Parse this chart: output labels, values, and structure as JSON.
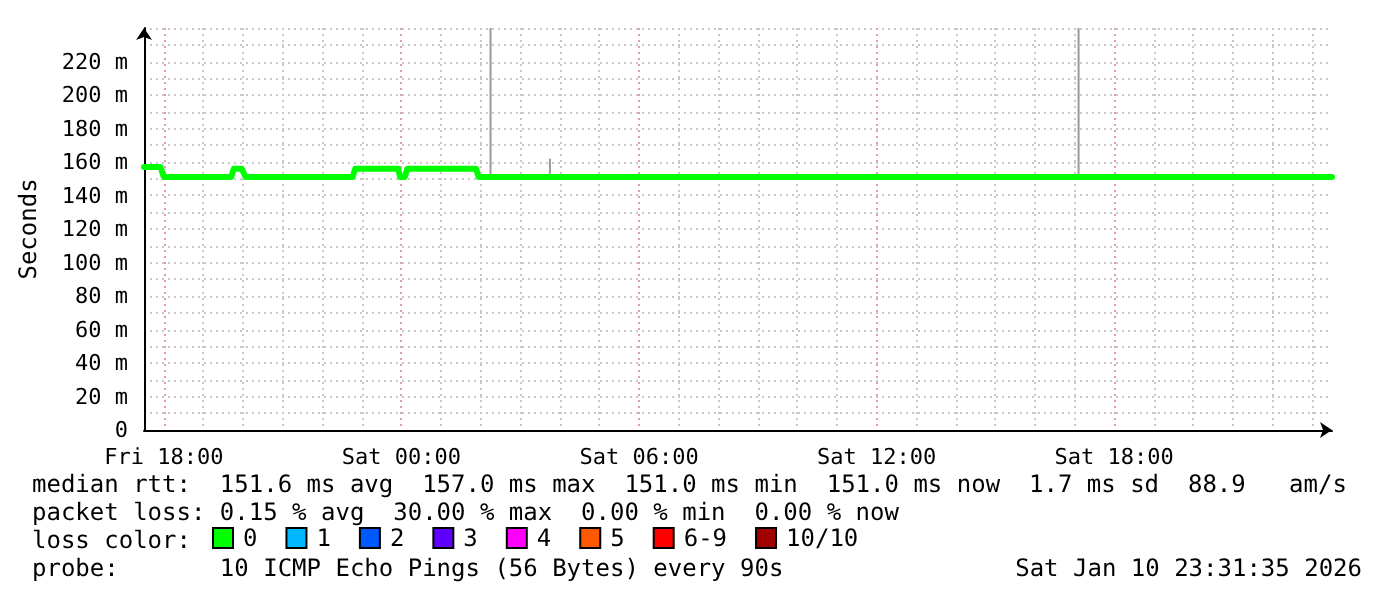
{
  "chart_data": {
    "type": "line",
    "ylabel": "Seconds",
    "legend_title": "loss color:",
    "legend": "bottom left",
    "grid": true,
    "marker": "none",
    "xlim": [
      "2026-01-09T17:30",
      "2026-01-10T23:30"
    ],
    "xticks": [
      {
        "value": "2026-01-09T18:00",
        "label": "Fri 18:00"
      },
      {
        "value": "2026-01-10T00:00",
        "label": "Sat 00:00"
      },
      {
        "value": "2026-01-10T06:00",
        "label": "Sat 06:00"
      },
      {
        "value": "2026-01-10T12:00",
        "label": "Sat 12:00"
      },
      {
        "value": "2026-01-10T18:00",
        "label": "Sat 18:00"
      }
    ],
    "ylim": [
      0,
      240
    ],
    "yticks": [
      {
        "value": 0,
        "label": "0"
      },
      {
        "value": 20,
        "label": "20 m"
      },
      {
        "value": 40,
        "label": "40 m"
      },
      {
        "value": 60,
        "label": "60 m"
      },
      {
        "value": 80,
        "label": "80 m"
      },
      {
        "value": 100,
        "label": "100 m"
      },
      {
        "value": 120,
        "label": "120 m"
      },
      {
        "value": 140,
        "label": "140 m"
      },
      {
        "value": 160,
        "label": "160 m"
      },
      {
        "value": 180,
        "label": "180 m"
      },
      {
        "value": 200,
        "label": "200 m"
      },
      {
        "value": 220,
        "label": "220 m"
      }
    ],
    "series": [
      {
        "type": "bar",
        "color": "#999999",
        "x": [
          "2026-01-10T02:15",
          "2026-01-10T03:45",
          "2026-01-10T17:06"
        ],
        "base": [
          151,
          151,
          151
        ],
        "values": [
          89,
          11,
          89
        ]
      },
      {
        "name": "0",
        "color": "#00ff00",
        "x": [
          "2026-01-09T17:30",
          "2026-01-09T17:55",
          "2026-01-09T18:00",
          "2026-01-09T19:42",
          "2026-01-09T19:46",
          "2026-01-09T19:58",
          "2026-01-09T20:04",
          "2026-01-09T22:46",
          "2026-01-09T22:50",
          "2026-01-09T23:55",
          "2026-01-09T23:58",
          "2026-01-10T00:05",
          "2026-01-10T00:09",
          "2026-01-10T01:53",
          "2026-01-10T01:57",
          "2026-01-10T23:30"
        ],
        "values": [
          157,
          157,
          151,
          151,
          156,
          156,
          151,
          151,
          156,
          156,
          151,
          151,
          156,
          156,
          151,
          151
        ]
      },
      {
        "name": "1",
        "color": "#00b8ff"
      },
      {
        "name": "2",
        "color": "#0059ff"
      },
      {
        "name": "3",
        "color": "#5e00ff"
      },
      {
        "name": "4",
        "color": "#ff00ff"
      },
      {
        "name": "5",
        "color": "#ff5900"
      },
      {
        "name": "6-9",
        "color": "#ff0000"
      },
      {
        "name": "10/10",
        "color": "#a10000"
      }
    ],
    "annotations": [
      "median rtt:  151.6 ms avg  157.0 ms max  151.0 ms min  151.0 ms now  1.7 ms sd  88.9   am/s",
      "packet loss: 0.15 % avg  30.00 % max  0.00 % min  0.00 % now",
      "probe:       10 ICMP Echo Pings (56 Bytes) every 90s",
      "Sat Jan 10 23:31:35 2026"
    ]
  }
}
